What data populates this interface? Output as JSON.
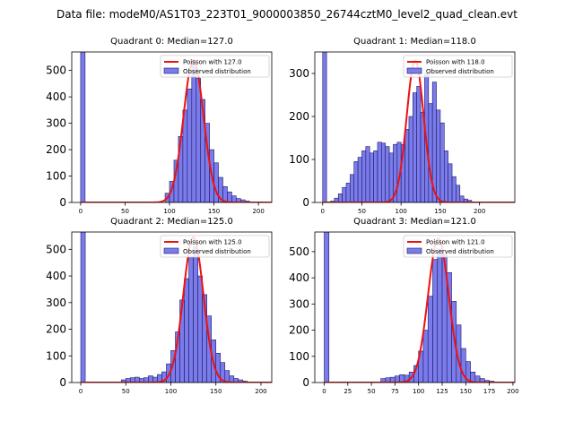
{
  "suptitle": "Data file: modeM0/AS1T03_223T01_9000003850_26744cztM0_level2_quad_clean.evt",
  "colors": {
    "hist_fill": "#7b7bea",
    "hist_edge": "#1a1a6a",
    "poisson": "#ee1111"
  },
  "chart_data": [
    {
      "type": "bar",
      "title": "Quadrant 0: Median=127.0",
      "legend": [
        "Poisson with 127.0",
        "Observed distribution"
      ],
      "legend_position": "top-right",
      "xlim": [
        -10,
        215
      ],
      "ylim": [
        0,
        570
      ],
      "xticks": [
        0,
        50,
        100,
        150,
        200
      ],
      "yticks": [
        0,
        100,
        200,
        300,
        400,
        500
      ],
      "bin_width": 5,
      "bins": [
        [
          0,
          570
        ],
        [
          95,
          35
        ],
        [
          100,
          80
        ],
        [
          105,
          160
        ],
        [
          110,
          250
        ],
        [
          115,
          350
        ],
        [
          120,
          430
        ],
        [
          125,
          530
        ],
        [
          130,
          470
        ],
        [
          135,
          390
        ],
        [
          140,
          300
        ],
        [
          145,
          200
        ],
        [
          150,
          150
        ],
        [
          155,
          95
        ],
        [
          160,
          60
        ],
        [
          165,
          40
        ],
        [
          170,
          25
        ],
        [
          175,
          15
        ],
        [
          180,
          10
        ],
        [
          185,
          5
        ]
      ],
      "poisson_mean": 127.0,
      "poisson_peak": 540
    },
    {
      "type": "bar",
      "title": "Quadrant 1: Median=118.0",
      "legend": [
        "Poisson with 118.0",
        "Observed distribution"
      ],
      "legend_position": "top-right",
      "xlim": [
        -10,
        245
      ],
      "ylim": [
        0,
        350
      ],
      "xticks": [
        0,
        50,
        100,
        150,
        200
      ],
      "yticks": [
        0,
        100,
        200,
        300
      ],
      "bin_width": 5,
      "bins": [
        [
          0,
          350
        ],
        [
          10,
          3
        ],
        [
          15,
          10
        ],
        [
          20,
          20
        ],
        [
          25,
          35
        ],
        [
          30,
          45
        ],
        [
          35,
          65
        ],
        [
          40,
          95
        ],
        [
          45,
          105
        ],
        [
          50,
          120
        ],
        [
          55,
          130
        ],
        [
          60,
          115
        ],
        [
          65,
          120
        ],
        [
          70,
          140
        ],
        [
          75,
          138
        ],
        [
          80,
          130
        ],
        [
          85,
          115
        ],
        [
          90,
          135
        ],
        [
          95,
          140
        ],
        [
          100,
          135
        ],
        [
          105,
          170
        ],
        [
          110,
          200
        ],
        [
          115,
          255
        ],
        [
          120,
          270
        ],
        [
          125,
          210
        ],
        [
          130,
          300
        ],
        [
          135,
          230
        ],
        [
          140,
          280
        ],
        [
          145,
          215
        ],
        [
          150,
          185
        ],
        [
          155,
          120
        ],
        [
          160,
          90
        ],
        [
          165,
          60
        ],
        [
          170,
          40
        ],
        [
          175,
          15
        ],
        [
          180,
          8
        ],
        [
          185,
          5
        ]
      ],
      "poisson_mean": 118.0,
      "poisson_peak": 330
    },
    {
      "type": "bar",
      "title": "Quadrant 2: Median=125.0",
      "legend": [
        "Poisson with 125.0",
        "Observed distribution"
      ],
      "legend_position": "top-right",
      "xlim": [
        -10,
        212
      ],
      "ylim": [
        0,
        565
      ],
      "xticks": [
        0,
        50,
        100,
        150,
        200
      ],
      "yticks": [
        0,
        100,
        200,
        300,
        400,
        500
      ],
      "bin_width": 5,
      "bins": [
        [
          0,
          565
        ],
        [
          45,
          10
        ],
        [
          50,
          15
        ],
        [
          55,
          18
        ],
        [
          60,
          20
        ],
        [
          65,
          15
        ],
        [
          70,
          18
        ],
        [
          75,
          25
        ],
        [
          80,
          20
        ],
        [
          85,
          30
        ],
        [
          90,
          40
        ],
        [
          95,
          70
        ],
        [
          100,
          120
        ],
        [
          105,
          190
        ],
        [
          110,
          310
        ],
        [
          115,
          390
        ],
        [
          120,
          470
        ],
        [
          125,
          510
        ],
        [
          130,
          400
        ],
        [
          135,
          330
        ],
        [
          140,
          250
        ],
        [
          145,
          160
        ],
        [
          150,
          110
        ],
        [
          155,
          75
        ],
        [
          160,
          45
        ],
        [
          165,
          25
        ],
        [
          170,
          15
        ],
        [
          175,
          10
        ],
        [
          180,
          5
        ]
      ],
      "poisson_mean": 125.0,
      "poisson_peak": 545
    },
    {
      "type": "bar",
      "title": "Quadrant 3: Median=121.0",
      "legend": [
        "Poisson with 121.0",
        "Observed distribution"
      ],
      "legend_position": "top-right",
      "xlim": [
        -10,
        202
      ],
      "ylim": [
        0,
        575
      ],
      "xticks": [
        0,
        25,
        50,
        75,
        100,
        125,
        150,
        175,
        200
      ],
      "yticks": [
        0,
        100,
        200,
        300,
        400,
        500
      ],
      "bin_width": 5,
      "bins": [
        [
          0,
          575
        ],
        [
          60,
          15
        ],
        [
          65,
          18
        ],
        [
          70,
          20
        ],
        [
          75,
          25
        ],
        [
          80,
          30
        ],
        [
          85,
          28
        ],
        [
          90,
          40
        ],
        [
          95,
          65
        ],
        [
          100,
          120
        ],
        [
          105,
          200
        ],
        [
          110,
          330
        ],
        [
          115,
          470
        ],
        [
          120,
          510
        ],
        [
          125,
          490
        ],
        [
          130,
          420
        ],
        [
          135,
          310
        ],
        [
          140,
          220
        ],
        [
          145,
          130
        ],
        [
          150,
          80
        ],
        [
          155,
          40
        ],
        [
          160,
          25
        ],
        [
          165,
          15
        ],
        [
          170,
          8
        ],
        [
          175,
          5
        ]
      ],
      "poisson_mean": 121.0,
      "poisson_peak": 550
    }
  ]
}
